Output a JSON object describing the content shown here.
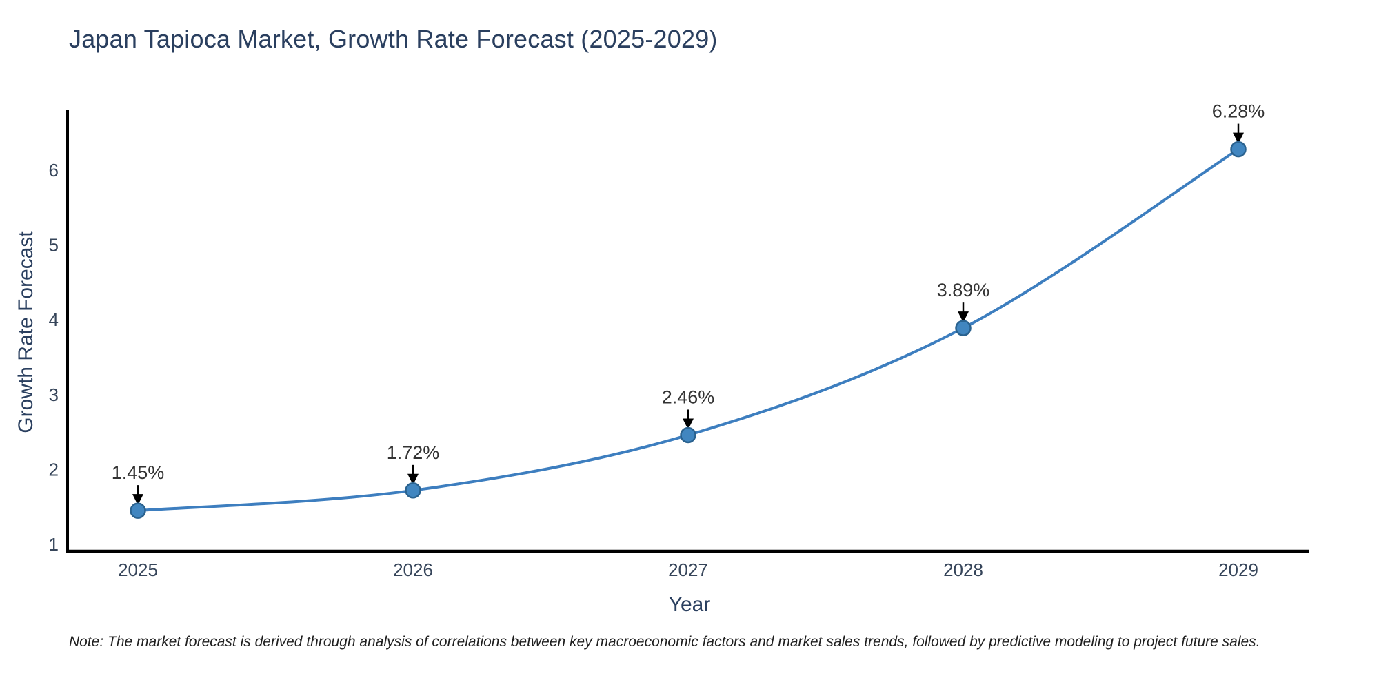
{
  "note": "Note: The market forecast is derived through analysis of correlations between key macroeconomic factors and market sales trends, followed by predictive modeling to project future sales.",
  "chart_data": {
    "type": "line",
    "title": "Japan Tapioca Market, Growth Rate Forecast (2025-2029)",
    "xlabel": "Year",
    "ylabel": "Growth Rate Forecast",
    "x": [
      2025,
      2026,
      2027,
      2028,
      2029
    ],
    "series": [
      {
        "name": "Growth Rate Forecast",
        "values": [
          1.45,
          1.72,
          2.46,
          3.89,
          6.28
        ]
      }
    ],
    "point_labels": [
      "1.45%",
      "1.72%",
      "2.46%",
      "3.89%",
      "6.28%"
    ],
    "xticks": [
      "2025",
      "2026",
      "2027",
      "2028",
      "2029"
    ],
    "yticks": [
      1,
      2,
      3,
      4,
      5,
      6
    ],
    "ylim": [
      0.9,
      6.85
    ],
    "grid": false,
    "legend": "none",
    "annotation_style": "arrow-down-to-point",
    "colors": {
      "line": "#3d7ebf",
      "marker_fill": "#4186c0",
      "marker_edge": "#2a628f",
      "title_text": "#2a3f5f",
      "tick_text": "#36455a",
      "annotation_text": "#333333",
      "arrow": "#000000",
      "axis_spine": "#000000",
      "background": "#ffffff"
    }
  }
}
